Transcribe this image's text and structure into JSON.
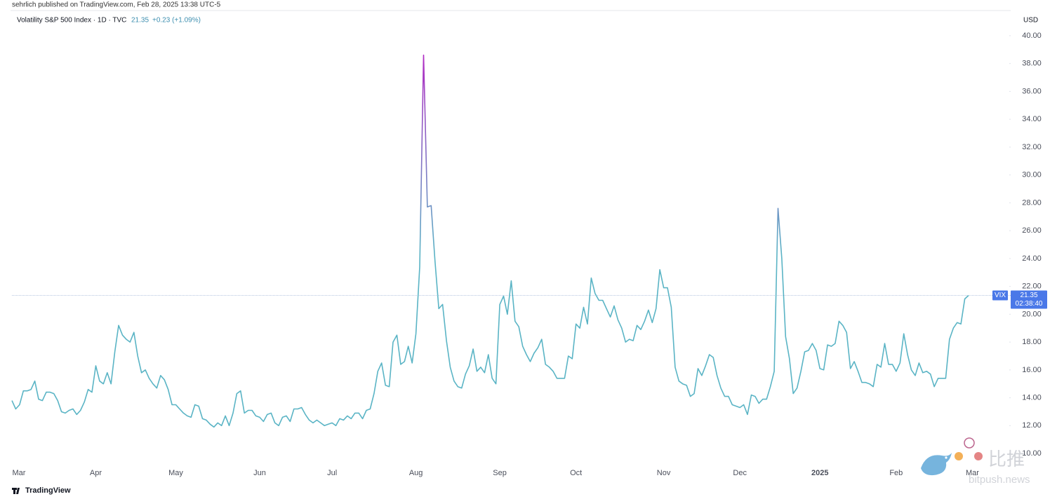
{
  "header": {
    "published": "sehrlich published on TradingView.com, Feb 28, 2025 13:38 UTC-5"
  },
  "legend": {
    "symbol": "Volatility S&P 500 Index · 1D · TVC",
    "change": "+0.23 (+1.09%)"
  },
  "price_tag": {
    "ticker": "VIX",
    "countdown": "02:38:40"
  },
  "footer": {
    "brand": "TradingView"
  },
  "watermark": {
    "cn": "比推",
    "site": "bitpush.news"
  },
  "chart_data": {
    "type": "line",
    "currency": "USD",
    "categories": [
      "Mar",
      null,
      null,
      null,
      null,
      null,
      null,
      null,
      null,
      null,
      null,
      null,
      null,
      null,
      null,
      null,
      null,
      null,
      null,
      null,
      null,
      null,
      "Apr",
      null,
      null,
      null,
      null,
      null,
      null,
      null,
      null,
      null,
      null,
      null,
      null,
      null,
      null,
      null,
      null,
      null,
      null,
      null,
      null,
      "May",
      null,
      null,
      null,
      null,
      null,
      null,
      null,
      null,
      null,
      null,
      null,
      null,
      null,
      null,
      null,
      null,
      null,
      null,
      null,
      null,
      null,
      "Jun",
      null,
      null,
      null,
      null,
      null,
      null,
      null,
      null,
      null,
      null,
      null,
      null,
      null,
      null,
      null,
      null,
      null,
      null,
      "Jul",
      null,
      null,
      null,
      null,
      null,
      null,
      null,
      null,
      null,
      null,
      null,
      null,
      null,
      null,
      null,
      null,
      null,
      null,
      null,
      null,
      null,
      "Aug",
      null,
      null,
      null,
      null,
      null,
      null,
      null,
      null,
      null,
      null,
      null,
      null,
      null,
      null,
      null,
      null,
      null,
      null,
      null,
      null,
      null,
      "Sep",
      null,
      null,
      null,
      null,
      null,
      null,
      null,
      null,
      null,
      null,
      null,
      null,
      null,
      null,
      null,
      null,
      null,
      null,
      null,
      "Oct",
      null,
      null,
      null,
      null,
      null,
      null,
      null,
      null,
      null,
      null,
      null,
      null,
      null,
      null,
      null,
      null,
      null,
      null,
      null,
      null,
      null,
      null,
      "Nov",
      null,
      null,
      null,
      null,
      null,
      null,
      null,
      null,
      null,
      null,
      null,
      null,
      null,
      null,
      null,
      null,
      null,
      null,
      null,
      "Dec",
      null,
      null,
      null,
      null,
      null,
      null,
      null,
      null,
      null,
      null,
      null,
      null,
      null,
      null,
      null,
      null,
      null,
      null,
      null,
      null,
      "2025",
      null,
      null,
      null,
      null,
      null,
      null,
      null,
      null,
      null,
      null,
      null,
      null,
      null,
      null,
      null,
      null,
      null,
      null,
      null,
      "Feb",
      null,
      null,
      null,
      null,
      null,
      null,
      null,
      null,
      null,
      null,
      null,
      null,
      null,
      null,
      null,
      null,
      null,
      null,
      null,
      "Mar"
    ],
    "series": [
      {
        "name": "VIX",
        "color": "#5ab4c5",
        "peak_color": "#b02cc4",
        "values": [
          13.8,
          13.2,
          13.5,
          14.5,
          14.5,
          14.6,
          15.2,
          13.9,
          13.8,
          14.4,
          14.4,
          14.3,
          13.8,
          13.0,
          12.9,
          13.1,
          13.2,
          12.8,
          13.1,
          13.7,
          14.6,
          14.4,
          16.3,
          15.2,
          15.0,
          15.8,
          15.0,
          17.3,
          19.2,
          18.5,
          18.2,
          18.0,
          18.7,
          17.0,
          15.8,
          16.0,
          15.4,
          15.0,
          14.7,
          15.6,
          15.3,
          14.6,
          13.5,
          13.5,
          13.2,
          12.9,
          12.7,
          12.6,
          13.5,
          13.4,
          12.5,
          12.4,
          12.1,
          11.9,
          12.2,
          12.0,
          12.7,
          12.0,
          12.9,
          14.3,
          14.5,
          12.9,
          13.1,
          13.1,
          12.7,
          12.6,
          12.3,
          12.8,
          12.9,
          12.2,
          12.0,
          12.6,
          12.7,
          12.3,
          13.2,
          13.2,
          13.3,
          12.8,
          12.4,
          12.2,
          12.4,
          12.2,
          12.0,
          12.1,
          12.2,
          12.0,
          12.5,
          12.4,
          12.7,
          12.5,
          12.9,
          12.9,
          12.5,
          13.1,
          13.2,
          14.3,
          15.9,
          16.5,
          14.9,
          14.8,
          18.0,
          18.5,
          16.4,
          16.6,
          17.7,
          16.5,
          18.6,
          23.4,
          38.6,
          27.7,
          27.8,
          23.8,
          20.4,
          20.7,
          18.1,
          16.2,
          15.2,
          14.8,
          14.7,
          15.7,
          16.3,
          17.5,
          15.9,
          16.2,
          15.8,
          17.1,
          15.4,
          15.0,
          20.7,
          21.3,
          20.0,
          22.4,
          19.5,
          19.1,
          17.7,
          17.1,
          16.6,
          17.2,
          17.6,
          18.2,
          16.4,
          16.2,
          15.9,
          15.4,
          15.4,
          15.4,
          17.0,
          16.8,
          19.3,
          19.0,
          20.5,
          19.3,
          22.6,
          21.5,
          21.0,
          21.0,
          20.4,
          19.8,
          20.6,
          19.6,
          19.0,
          18.0,
          18.2,
          18.1,
          19.2,
          18.9,
          19.5,
          20.3,
          19.4,
          20.4,
          23.2,
          21.9,
          21.9,
          20.5,
          16.2,
          15.2,
          15.0,
          14.9,
          14.1,
          14.3,
          16.1,
          15.6,
          16.3,
          17.1,
          16.9,
          15.6,
          14.7,
          14.1,
          14.1,
          13.5,
          13.4,
          13.3,
          13.5,
          12.8,
          14.2,
          14.1,
          13.6,
          13.9,
          13.9,
          14.8,
          15.9,
          27.6,
          24.0,
          18.4,
          16.8,
          14.3,
          14.7,
          15.9,
          17.3,
          17.4,
          17.9,
          17.4,
          16.1,
          16.0,
          17.8,
          17.7,
          17.9,
          19.5,
          19.2,
          18.7,
          16.1,
          16.6,
          15.9,
          15.1,
          15.1,
          15.0,
          14.8,
          16.4,
          16.2,
          17.9,
          16.4,
          16.4,
          15.9,
          16.5,
          18.6,
          17.1,
          16.0,
          15.6,
          16.5,
          15.8,
          15.9,
          15.7,
          14.8,
          15.4,
          15.4,
          15.4,
          18.2,
          19.0,
          19.4,
          19.3,
          21.1,
          21.35,
          null
        ]
      }
    ],
    "ylim": [
      9.4,
      40.6
    ],
    "yticks": [
      {
        "value": 10,
        "label": "10.00"
      },
      {
        "value": 12,
        "label": "12.00"
      },
      {
        "value": 14,
        "label": "14.00"
      },
      {
        "value": 16,
        "label": "16.00"
      },
      {
        "value": 18,
        "label": "18.00"
      },
      {
        "value": 20,
        "label": "20.00"
      },
      {
        "value": 22,
        "label": "22.00"
      },
      {
        "value": 24,
        "label": "24.00"
      },
      {
        "value": 26,
        "label": "26.00"
      },
      {
        "value": 28,
        "label": "28.00"
      },
      {
        "value": 30,
        "label": "30.00"
      },
      {
        "value": 32,
        "label": "32.00"
      },
      {
        "value": 34,
        "label": "34.00"
      },
      {
        "value": 36,
        "label": "36.00"
      },
      {
        "value": 38,
        "label": "38.00"
      },
      {
        "value": 40,
        "label": "40.00"
      }
    ],
    "grid": false
  }
}
